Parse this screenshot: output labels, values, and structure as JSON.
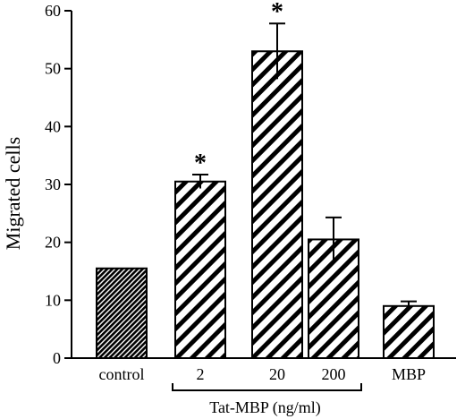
{
  "chart_data": {
    "type": "bar",
    "title": "",
    "ylabel": "Migrated cells",
    "xlabel": "",
    "ylim": [
      0,
      60
    ],
    "yticks": [
      0,
      10,
      20,
      30,
      40,
      50,
      60
    ],
    "categories": [
      "control",
      "2",
      "20",
      "200",
      "MBP"
    ],
    "values": [
      15.5,
      30.5,
      53,
      20.5,
      9
    ],
    "errors": [
      0,
      1.2,
      4.8,
      3.8,
      0.8
    ],
    "significant": [
      false,
      true,
      true,
      false,
      false
    ],
    "significance_marker": "*",
    "fill_patterns": [
      "dense-hatch",
      "hatch",
      "hatch",
      "hatch",
      "hatch"
    ],
    "group_bracket": {
      "label": "Tat-MBP (ng/ml)",
      "categories": [
        "2",
        "20",
        "200"
      ]
    },
    "colors": {
      "ink": "#000000",
      "background": "#ffffff"
    }
  }
}
